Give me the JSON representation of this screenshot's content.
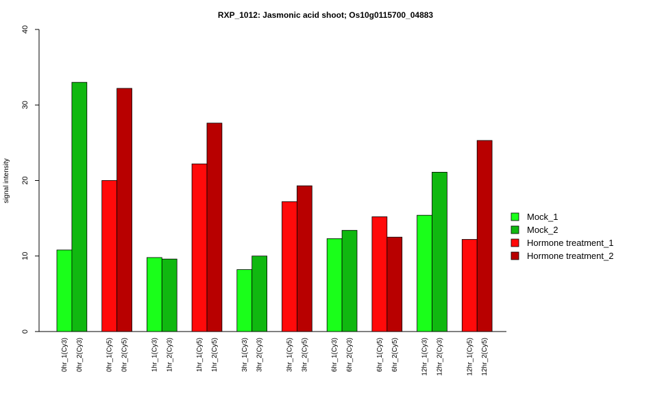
{
  "chart_data": {
    "type": "bar",
    "title": "RXP_1012: Jasmonic acid shoot; Os10g0115700_04883",
    "xlabel": "",
    "ylabel": "signal intensity",
    "ylim": [
      0,
      40
    ],
    "yticks": [
      0,
      10,
      20,
      30,
      40
    ],
    "grid": false,
    "legend_position": "right",
    "categories": [
      "0hr_1(Cy3)",
      "0hr_2(Cy3)",
      "0hr_1(Cy5)",
      "0hr_2(Cy5)",
      "1hr_1(Cy3)",
      "1hr_2(Cy3)",
      "1hr_1(Cy5)",
      "1hr_2(Cy5)",
      "3hr_1(Cy3)",
      "3hr_2(Cy3)",
      "3hr_1(Cy5)",
      "3hr_2(Cy5)",
      "6hr_1(Cy3)",
      "6hr_2(Cy3)",
      "6hr_1(Cy5)",
      "6hr_2(Cy5)",
      "12hr_1(Cy3)",
      "12hr_2(Cy3)",
      "12hr_1(Cy5)",
      "12hr_2(Cy5)"
    ],
    "values": [
      10.8,
      33.0,
      20.0,
      32.2,
      9.8,
      9.6,
      22.2,
      27.6,
      8.2,
      10.0,
      17.2,
      19.3,
      12.3,
      13.4,
      15.2,
      12.5,
      15.4,
      21.1,
      12.2,
      25.3
    ],
    "bar_series": [
      0,
      1,
      2,
      3,
      0,
      1,
      2,
      3,
      0,
      1,
      2,
      3,
      0,
      1,
      2,
      3,
      0,
      1,
      2,
      3
    ],
    "series": [
      {
        "name": "Mock_1",
        "color": "#1aff1a"
      },
      {
        "name": "Mock_2",
        "color": "#10b810"
      },
      {
        "name": "Hormone treatment_1",
        "color": "#ff0a0a"
      },
      {
        "name": "Hormone treatment_2",
        "color": "#b80000"
      }
    ]
  }
}
